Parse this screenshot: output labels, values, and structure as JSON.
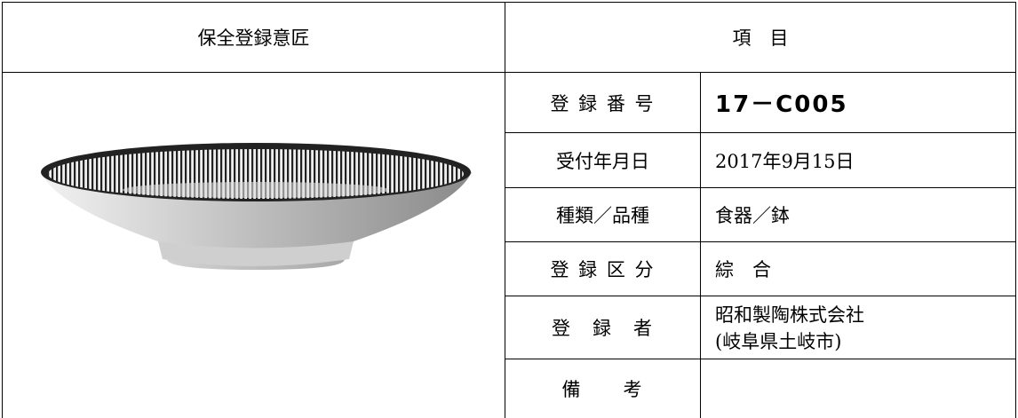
{
  "header": {
    "left": "保全登録意匠",
    "right": "項　目"
  },
  "rows": [
    {
      "label": "登 録 番 号",
      "value": "17－C005"
    },
    {
      "label": "受付年月日",
      "value": "2017年9月15日"
    },
    {
      "label": "種類／品種",
      "value": "食器／鉢"
    },
    {
      "label": "登 録 区 分",
      "value": "綜　合"
    },
    {
      "label": "登　録　者",
      "lines": [
        "昭和製陶株式会社",
        "(岐阜県土岐市)"
      ]
    },
    {
      "label": "備　　考"
    }
  ]
}
